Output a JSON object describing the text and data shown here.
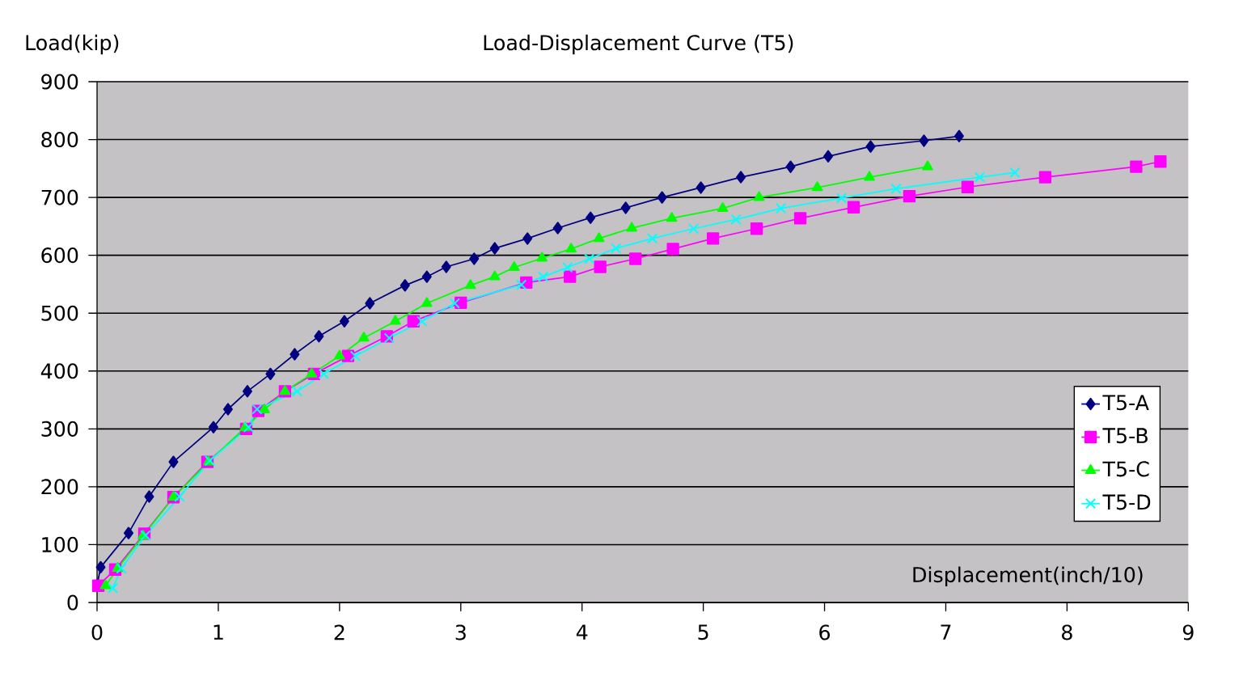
{
  "chart_data": {
    "type": "line",
    "title": "Load-Displacement Curve (T5)",
    "xlabel": "Displacement(inch/10)",
    "ylabel": "Load(kip)",
    "xlim": [
      0,
      9
    ],
    "ylim": [
      0,
      900
    ],
    "xticks": [
      0,
      1,
      2,
      3,
      4,
      5,
      6,
      7,
      8,
      9
    ],
    "yticks": [
      0,
      100,
      200,
      300,
      400,
      500,
      600,
      700,
      800,
      900
    ],
    "grid": "y",
    "legend": "right",
    "line_style": "solid",
    "series": [
      {
        "name": "T5-A",
        "color": "#000080",
        "marker": "diamond",
        "x": [
          0.0,
          0.03,
          0.26,
          0.43,
          0.63,
          0.96,
          1.08,
          1.24,
          1.43,
          1.63,
          1.83,
          2.04,
          2.25,
          2.54,
          2.72,
          2.88,
          3.11,
          3.28,
          3.55,
          3.8,
          4.07,
          4.36,
          4.66,
          4.98,
          5.31,
          5.72,
          6.03,
          6.38,
          6.82,
          7.11
        ],
        "values": [
          30,
          61,
          120,
          183,
          243,
          303,
          334,
          365,
          395,
          429,
          460,
          486,
          517,
          548,
          563,
          580,
          594,
          612,
          629,
          647,
          665,
          682,
          700,
          717,
          735,
          753,
          771,
          788,
          798,
          806
        ]
      },
      {
        "name": "T5-B",
        "color": "#ff00ff",
        "marker": "square",
        "x": [
          0.01,
          0.15,
          0.39,
          0.63,
          0.91,
          1.23,
          1.33,
          1.55,
          1.79,
          2.07,
          2.39,
          2.61,
          3.0,
          3.54,
          3.9,
          4.15,
          4.44,
          4.75,
          5.08,
          5.44,
          5.8,
          6.24,
          6.7,
          7.18,
          7.82,
          8.57,
          8.77
        ],
        "values": [
          29,
          57,
          119,
          182,
          243,
          300,
          331,
          365,
          395,
          426,
          460,
          486,
          518,
          553,
          563,
          580,
          594,
          611,
          629,
          646,
          664,
          683,
          702,
          718,
          735,
          753,
          762
        ]
      },
      {
        "name": "T5-C",
        "color": "#00ff00",
        "marker": "triangle",
        "x": [
          0.07,
          0.17,
          0.38,
          0.63,
          0.92,
          1.22,
          1.38,
          1.55,
          1.77,
          2.0,
          2.2,
          2.46,
          2.72,
          3.08,
          3.28,
          3.44,
          3.67,
          3.91,
          4.14,
          4.41,
          4.74,
          5.16,
          5.46,
          5.94,
          6.37,
          6.85
        ],
        "values": [
          29,
          59,
          115,
          182,
          243,
          302,
          333,
          365,
          395,
          426,
          457,
          486,
          517,
          548,
          563,
          579,
          595,
          611,
          629,
          647,
          664,
          681,
          700,
          717,
          735,
          753
        ]
      },
      {
        "name": "T5-D",
        "color": "#00ffff",
        "marker": "cross",
        "x": [
          0.13,
          0.2,
          0.4,
          0.68,
          0.93,
          1.25,
          1.32,
          1.65,
          1.87,
          2.13,
          2.41,
          2.68,
          2.95,
          3.5,
          3.68,
          3.88,
          4.06,
          4.28,
          4.58,
          4.92,
          5.27,
          5.64,
          6.14,
          6.59,
          7.28,
          7.57
        ],
        "values": [
          25,
          59,
          116,
          183,
          245,
          303,
          334,
          365,
          395,
          426,
          457,
          486,
          517,
          549,
          563,
          579,
          594,
          612,
          629,
          646,
          662,
          681,
          699,
          715,
          735,
          743
        ]
      }
    ]
  }
}
